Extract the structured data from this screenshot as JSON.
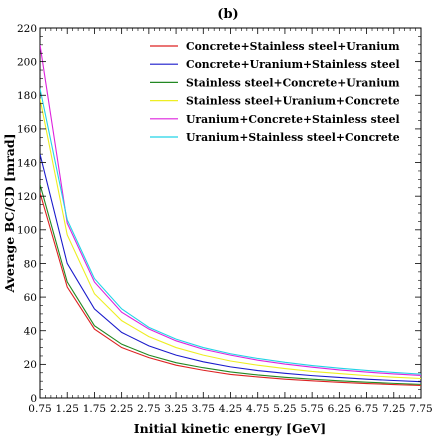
{
  "chart_data": {
    "type": "line",
    "title": "(b)",
    "xlabel": "Initial kinetic energy [GeV]",
    "ylabel": "Average BC/CD [mrad]",
    "xlim": [
      0.75,
      7.75
    ],
    "ylim": [
      0,
      220
    ],
    "xticks": [
      0.75,
      1.25,
      1.75,
      2.25,
      2.75,
      3.25,
      3.75,
      4.25,
      4.75,
      5.25,
      5.75,
      6.25,
      6.75,
      7.25,
      7.75
    ],
    "xtick_labels": [
      "0.75",
      "1.25",
      "1.75",
      "2.25",
      "2.75",
      "3.25",
      "3.75",
      "4.25",
      "4.75",
      "5.25",
      "5.75",
      "6.25",
      "6.75",
      "7.25",
      "7.75"
    ],
    "yticks": [
      0,
      20,
      40,
      60,
      80,
      100,
      120,
      140,
      160,
      180,
      200,
      220
    ],
    "ytick_labels": [
      "0",
      "20",
      "40",
      "60",
      "80",
      "100",
      "120",
      "140",
      "160",
      "180",
      "200",
      "220"
    ],
    "legend_position": "top-right",
    "grid": false,
    "x": [
      0.75,
      1.25,
      1.75,
      2.25,
      2.75,
      3.25,
      3.75,
      4.25,
      4.75,
      5.25,
      5.75,
      6.25,
      6.75,
      7.25,
      7.75
    ],
    "series": [
      {
        "name": "Concrete+Stainless steel+Uranium",
        "color": "#dd2222",
        "values": [
          122,
          66,
          41,
          30,
          24,
          19.5,
          16.5,
          14,
          12.5,
          11.2,
          10.2,
          9.3,
          8.6,
          8.0,
          7.5
        ]
      },
      {
        "name": "Concrete+Uranium+Stainless steel",
        "color": "#1a1acc",
        "values": [
          145,
          80,
          53,
          39,
          31,
          25.5,
          21.5,
          18.5,
          16.3,
          14.7,
          13.3,
          12.2,
          11.2,
          10.4,
          9.7
        ]
      },
      {
        "name": "Stainless steel+Concrete+Uranium",
        "color": "#228822",
        "values": [
          127,
          69,
          43,
          32,
          25.5,
          21,
          18,
          15.5,
          13.7,
          12.3,
          11.2,
          10.2,
          9.4,
          8.7,
          8.1
        ]
      },
      {
        "name": "Stainless steel+Uranium+Concrete",
        "color": "#eeee22",
        "values": [
          178,
          97,
          62,
          46,
          36.5,
          30,
          25.5,
          22,
          19.5,
          17.5,
          15.8,
          14.5,
          13.3,
          12.4,
          11.6
        ]
      },
      {
        "name": "Uranium+Concrete+Stainless steel",
        "color": "#dd22dd",
        "values": [
          210,
          104,
          69,
          51,
          41,
          34,
          29,
          25.5,
          22.5,
          20.2,
          18.3,
          16.7,
          15.4,
          14.3,
          13.4
        ]
      },
      {
        "name": "Uranium+Stainless steel+Concrete",
        "color": "#22d4e6",
        "values": [
          184,
          106,
          71,
          53,
          42,
          35,
          30,
          26.3,
          23.5,
          21.2,
          19.3,
          17.7,
          16.4,
          15.2,
          14.2
        ]
      }
    ]
  }
}
